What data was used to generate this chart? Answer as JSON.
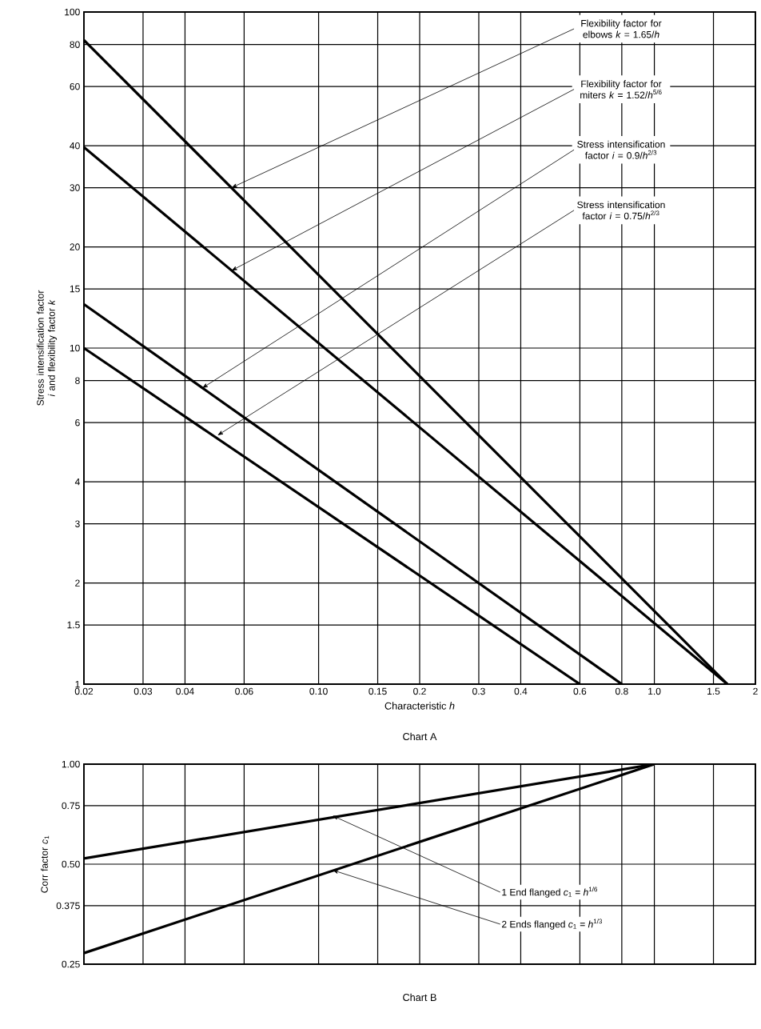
{
  "chart_data": [
    {
      "type": "line",
      "title": "Chart A",
      "xlabel": "Characteristic *h*",
      "ylabel": "Stress intensification factor *i* and flexibility factor *k*",
      "log": "xy",
      "grid": true,
      "line_style": "solid",
      "xlim": [
        0.02,
        2
      ],
      "ylim": [
        1,
        100
      ],
      "xticks": [
        0.02,
        0.03,
        0.04,
        0.06,
        {
          "value": 0.1,
          "label": "0.10"
        },
        0.15,
        0.2,
        0.3,
        0.4,
        0.6,
        0.8,
        {
          "value": 1,
          "label": "1.0"
        },
        1.5,
        2
      ],
      "yticks": [
        1,
        1.5,
        2,
        3,
        4,
        6,
        8,
        10,
        15,
        20,
        30,
        40,
        60,
        80,
        100
      ],
      "series": [
        {
          "color": "#000000",
          "x": [
            0.02,
            1.65
          ],
          "values": [
            82.5,
            1
          ]
        },
        {
          "color": "#000000",
          "x": [
            0.02,
            1.65
          ],
          "values": [
            39.6,
            1
          ]
        },
        {
          "color": "#000000",
          "x": [
            0.02,
            0.8
          ],
          "values": [
            13.5,
            1
          ]
        },
        {
          "color": "#000000",
          "x": [
            0.02,
            0.6
          ],
          "values": [
            10,
            1
          ]
        }
      ],
      "annotations": [
        {
          "text": "Flexibility factor for elbows *k* = 1.65/*h*",
          "x": 0.055,
          "y": 30
        },
        {
          "text": "Flexibility factor for miters *k* = 1.52/*h*$^{5/6}$",
          "x": 0.055,
          "y": 17
        },
        {
          "text": "Stress intensification factor *i* = 0.9/*h*$^{2/3}$",
          "x": 0.045,
          "y": 7.6
        },
        {
          "text": "Stress intensification factor *i* = 0.75/*h*$^{2/3}$",
          "x": 0.05,
          "y": 5.5
        }
      ]
    },
    {
      "type": "line",
      "title": "Chart B",
      "ylabel": "Corr factor *c*$_{1}$",
      "log": "xy",
      "grid": true,
      "line_style": "solid",
      "tick_labels": "y",
      "xlim": [
        0.02,
        2
      ],
      "ylim": [
        0.25,
        1
      ],
      "xticks": [
        0.02,
        0.03,
        0.04,
        0.06,
        0.1,
        0.15,
        0.2,
        0.3,
        0.4,
        0.6,
        0.8,
        1,
        1.5,
        2
      ],
      "yticks": [
        0.25,
        0.375,
        {
          "value": 0.5,
          "label": "0.50"
        },
        0.75,
        {
          "value": 1,
          "label": "1.00"
        }
      ],
      "series": [
        {
          "color": "#000000",
          "x": [
            0.02,
            1
          ],
          "values": [
            0.52,
            1
          ]
        },
        {
          "color": "#000000",
          "x": [
            0.02,
            1
          ],
          "values": [
            0.27,
            1
          ]
        }
      ],
      "annotations": [
        {
          "text": "1 End flanged *c*$_{1}$ = *h*$^{1/6}$",
          "x": 0.11,
          "y": 0.7
        },
        {
          "text": "2 Ends flanged *c*$_{1}$ = *h*$^{1/3}$",
          "x": 0.11,
          "y": 0.48
        }
      ]
    }
  ]
}
